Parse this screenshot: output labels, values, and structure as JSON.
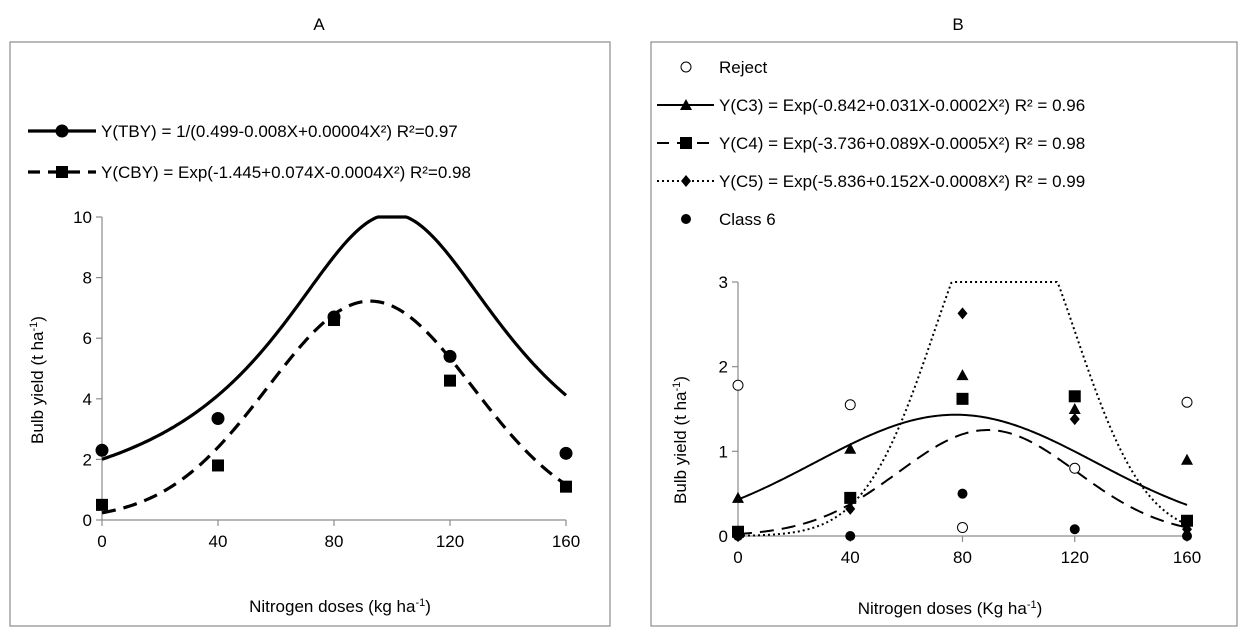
{
  "chart_data": [
    {
      "panel_label": "A",
      "type": "scatter",
      "xlabel_main": "Nitrogen doses (kg ha",
      "xlabel_sup": "-1",
      "xlabel_end": ")",
      "ylabel_main": "Bulb yield (t ha",
      "ylabel_sup": "-1",
      "ylabel_end": ")",
      "xlim": [
        0,
        160
      ],
      "ylim": [
        0,
        10
      ],
      "xticks": [
        0,
        40,
        80,
        120,
        160
      ],
      "yticks": [
        0,
        2,
        4,
        6,
        8,
        10
      ],
      "x": [
        0,
        40,
        80,
        120,
        160
      ],
      "series": [
        {
          "legend": "Y(TBY) = 1/(0.499-0.008X+0.00004X²) R²=0.97",
          "marker": "circle",
          "line": "solid",
          "values": [
            2.3,
            3.35,
            6.7,
            5.4,
            2.2
          ],
          "fit": {
            "form": "reciprocal_quadratic",
            "a": 0.499,
            "b": -0.008,
            "c": 4e-05
          }
        },
        {
          "legend": "Y(CBY) = Exp(-1.445+0.074X-0.0004X²) R²=0.98",
          "marker": "square",
          "line": "dashed",
          "values": [
            0.5,
            1.8,
            6.6,
            4.6,
            1.1
          ],
          "fit": {
            "form": "exp_quadratic",
            "a": -1.445,
            "b": 0.074,
            "c": -0.0004
          }
        }
      ]
    },
    {
      "panel_label": "B",
      "type": "scatter",
      "xlabel_main": "Nitrogen doses (Kg ha",
      "xlabel_sup": "-1",
      "xlabel_end": ")",
      "ylabel_main": "Bulb yield (t ha",
      "ylabel_sup": "-1",
      "ylabel_end": ")",
      "xlim": [
        0,
        160
      ],
      "ylim": [
        0,
        3
      ],
      "xticks": [
        0,
        40,
        80,
        120,
        160
      ],
      "yticks": [
        0,
        1,
        2,
        3
      ],
      "x": [
        0,
        40,
        80,
        120,
        160
      ],
      "series": [
        {
          "legend": "Reject",
          "marker": "open-circle",
          "line": "none",
          "values": [
            1.78,
            1.55,
            0.1,
            0.8,
            1.58
          ]
        },
        {
          "legend": "Y(C3) = Exp(-0.842+0.031X-0.0002X²) R² = 0.96",
          "marker": "triangle",
          "line": "solid",
          "values": [
            0.45,
            1.03,
            1.9,
            1.5,
            0.9
          ],
          "fit": {
            "form": "exp_quadratic",
            "a": -0.842,
            "b": 0.031,
            "c": -0.0002
          }
        },
        {
          "legend": "Y(C4) = Exp(-3.736+0.089X-0.0005X²) R² = 0.98",
          "marker": "square",
          "line": "dashed",
          "values": [
            0.05,
            0.45,
            1.62,
            1.65,
            0.18
          ],
          "fit": {
            "form": "exp_quadratic",
            "a": -3.736,
            "b": 0.089,
            "c": -0.0005
          }
        },
        {
          "legend": "Y(C5) = Exp(-5.836+0.152X-0.0008X²) R² = 0.99",
          "marker": "diamond",
          "line": "dotted",
          "values": [
            0.0,
            0.32,
            2.63,
            1.38,
            0.08
          ],
          "fit": {
            "form": "exp_quadratic",
            "a": -5.836,
            "b": 0.152,
            "c": -0.0008
          }
        },
        {
          "legend": "Class 6",
          "marker": "filled-circle",
          "line": "none",
          "values": [
            0.0,
            0.0,
            0.5,
            0.08,
            0.0
          ]
        }
      ]
    }
  ]
}
